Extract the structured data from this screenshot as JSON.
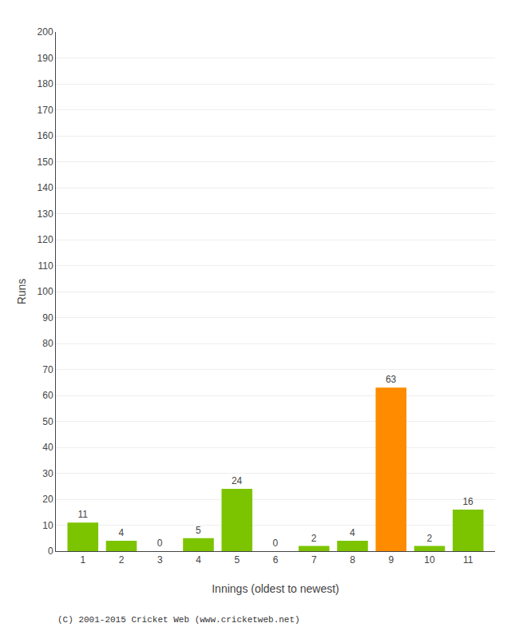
{
  "chart_data": {
    "type": "bar",
    "x": [
      1,
      2,
      3,
      4,
      5,
      6,
      7,
      8,
      9,
      10,
      11
    ],
    "values": [
      11,
      4,
      0,
      5,
      24,
      0,
      2,
      4,
      63,
      2,
      16
    ],
    "colors": [
      "#7dc400",
      "#7dc400",
      "#7dc400",
      "#7dc400",
      "#7dc400",
      "#7dc400",
      "#7dc400",
      "#7dc400",
      "#ff8c00",
      "#7dc400",
      "#7dc400"
    ],
    "xlabel": "Innings (oldest to newest)",
    "ylabel": "Runs",
    "xlim": [
      0.3,
      11.7
    ],
    "xticks": [
      1,
      2,
      3,
      4,
      5,
      6,
      7,
      8,
      9,
      10,
      11
    ],
    "ylim": [
      0,
      200
    ],
    "yticks": [
      0,
      10,
      20,
      30,
      40,
      50,
      60,
      70,
      80,
      90,
      100,
      110,
      120,
      130,
      140,
      150,
      160,
      170,
      180,
      190,
      200
    ],
    "grid": true,
    "data_labels": true,
    "annotations": [
      "(C) 2001-2015 Cricket Web (www.cricketweb.net)"
    ]
  }
}
